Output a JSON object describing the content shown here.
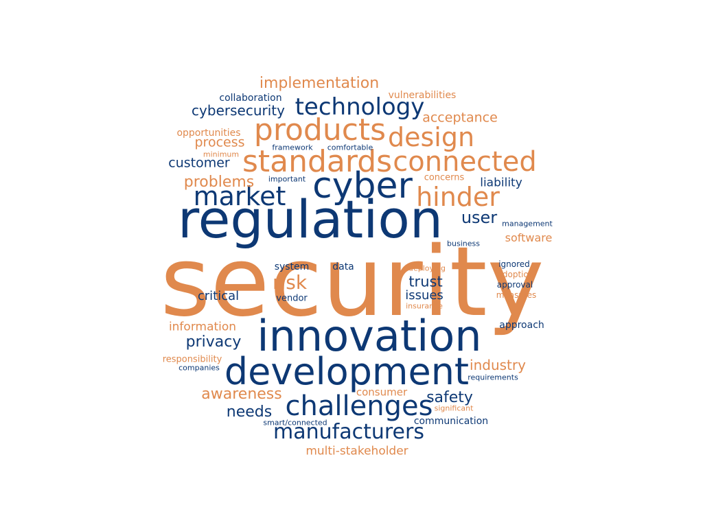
{
  "colors": {
    "blue": "#0d3874",
    "orange": "#e0894d"
  },
  "words": [
    {
      "id": "security",
      "text": "security",
      "color": "orange"
    },
    {
      "id": "regulation",
      "text": "regulation",
      "color": "blue"
    },
    {
      "id": "innovation",
      "text": "innovation",
      "color": "blue"
    },
    {
      "id": "development",
      "text": "development",
      "color": "blue"
    },
    {
      "id": "cyber",
      "text": "cyber",
      "color": "blue"
    },
    {
      "id": "standards",
      "text": "standards",
      "color": "orange"
    },
    {
      "id": "products",
      "text": "products",
      "color": "orange"
    },
    {
      "id": "connected",
      "text": "connected",
      "color": "orange"
    },
    {
      "id": "design",
      "text": "design",
      "color": "orange"
    },
    {
      "id": "technology",
      "text": "technology",
      "color": "blue"
    },
    {
      "id": "market",
      "text": "market",
      "color": "blue"
    },
    {
      "id": "hinder",
      "text": "hinder",
      "color": "orange"
    },
    {
      "id": "challenges",
      "text": "challenges",
      "color": "blue"
    },
    {
      "id": "manufacturers",
      "text": "manufacturers",
      "color": "blue"
    },
    {
      "id": "implementation",
      "text": "implementation",
      "color": "orange"
    },
    {
      "id": "cybersecurity",
      "text": "cybersecurity",
      "color": "blue"
    },
    {
      "id": "vulnerabilities",
      "text": "vulnerabilities",
      "color": "orange"
    },
    {
      "id": "collaboration",
      "text": "collaboration",
      "color": "blue"
    },
    {
      "id": "acceptance",
      "text": "acceptance",
      "color": "orange"
    },
    {
      "id": "opportunities",
      "text": "opportunities",
      "color": "orange"
    },
    {
      "id": "process",
      "text": "process",
      "color": "orange"
    },
    {
      "id": "framework",
      "text": "framework",
      "color": "blue"
    },
    {
      "id": "comfortable",
      "text": "comfortable",
      "color": "blue"
    },
    {
      "id": "minimum",
      "text": "minimum",
      "color": "orange"
    },
    {
      "id": "customer",
      "text": "customer",
      "color": "blue"
    },
    {
      "id": "problems",
      "text": "problems",
      "color": "orange"
    },
    {
      "id": "important",
      "text": "important",
      "color": "blue"
    },
    {
      "id": "concerns",
      "text": "concerns",
      "color": "orange"
    },
    {
      "id": "liability",
      "text": "liability",
      "color": "blue"
    },
    {
      "id": "user",
      "text": "user",
      "color": "blue"
    },
    {
      "id": "management",
      "text": "management",
      "color": "blue"
    },
    {
      "id": "software",
      "text": "software",
      "color": "orange"
    },
    {
      "id": "business",
      "text": "business",
      "color": "blue"
    },
    {
      "id": "system",
      "text": "system",
      "color": "blue"
    },
    {
      "id": "data",
      "text": "data",
      "color": "blue"
    },
    {
      "id": "deploying",
      "text": "deploying",
      "color": "orange"
    },
    {
      "id": "ignored",
      "text": "ignored",
      "color": "blue"
    },
    {
      "id": "adoption",
      "text": "adoption",
      "color": "orange"
    },
    {
      "id": "approval",
      "text": "approval",
      "color": "blue"
    },
    {
      "id": "measures",
      "text": "measures",
      "color": "orange"
    },
    {
      "id": "risk",
      "text": "risk",
      "color": "orange"
    },
    {
      "id": "trust",
      "text": "trust",
      "color": "blue"
    },
    {
      "id": "issues",
      "text": "issues",
      "color": "blue"
    },
    {
      "id": "insurance",
      "text": "insurance",
      "color": "orange"
    },
    {
      "id": "critical",
      "text": "critical",
      "color": "blue"
    },
    {
      "id": "vendor",
      "text": "vendor",
      "color": "blue"
    },
    {
      "id": "information",
      "text": "information",
      "color": "orange"
    },
    {
      "id": "approach",
      "text": "approach",
      "color": "blue"
    },
    {
      "id": "privacy",
      "text": "privacy",
      "color": "blue"
    },
    {
      "id": "responsibility",
      "text": "responsibility",
      "color": "orange"
    },
    {
      "id": "companies",
      "text": "companies",
      "color": "blue"
    },
    {
      "id": "industry",
      "text": "industry",
      "color": "orange"
    },
    {
      "id": "requirements",
      "text": "requirements",
      "color": "blue"
    },
    {
      "id": "awareness",
      "text": "awareness",
      "color": "orange"
    },
    {
      "id": "consumer",
      "text": "consumer",
      "color": "orange"
    },
    {
      "id": "safety",
      "text": "safety",
      "color": "blue"
    },
    {
      "id": "significant",
      "text": "significant",
      "color": "orange"
    },
    {
      "id": "needs",
      "text": "needs",
      "color": "blue"
    },
    {
      "id": "smart_connected",
      "text": "smart/connected",
      "color": "blue"
    },
    {
      "id": "communication",
      "text": "communication",
      "color": "blue"
    },
    {
      "id": "multi_stakeholder",
      "text": "multi-stakeholder",
      "color": "orange"
    }
  ]
}
